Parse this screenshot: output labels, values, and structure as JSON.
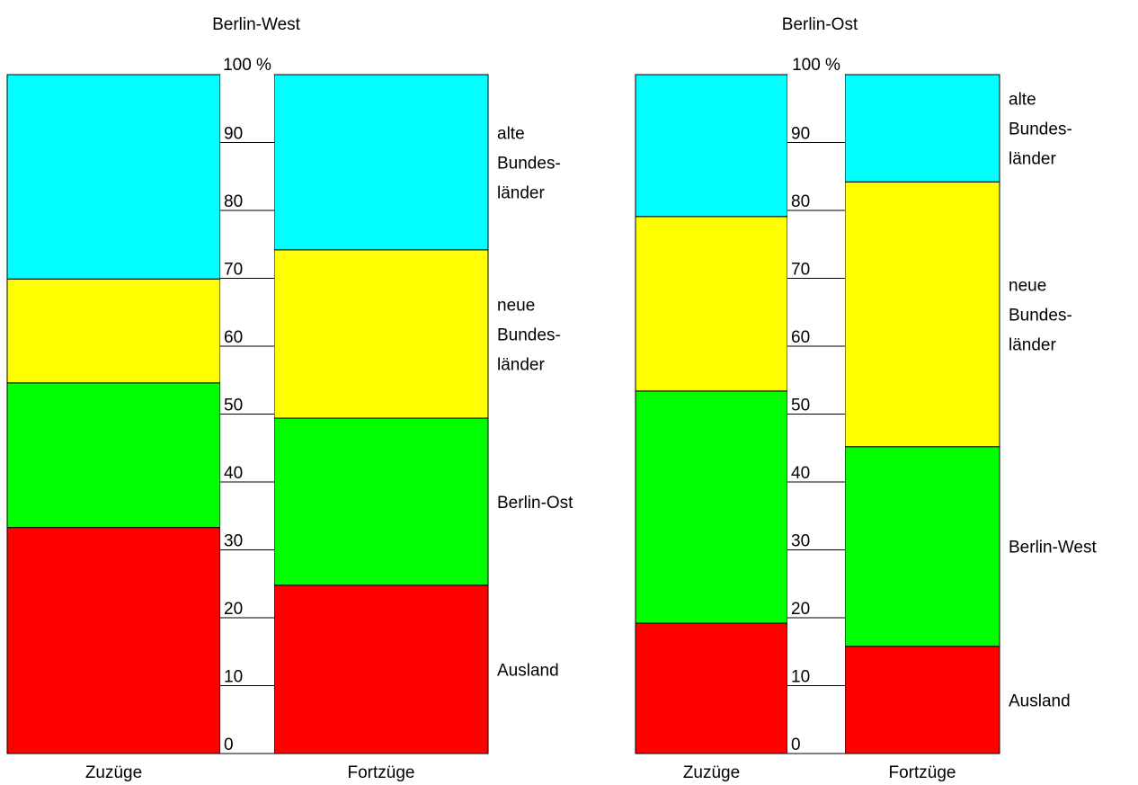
{
  "chart_data": [
    {
      "type": "bar",
      "stacked": true,
      "percent": true,
      "title": "Berlin-West",
      "categories": [
        "Zuzüge",
        "Fortzüge"
      ],
      "series": [
        {
          "name": "Ausland",
          "color": "#ff0000",
          "values": [
            33.3,
            24.8
          ]
        },
        {
          "name": "Berlin-Ost",
          "color": "#00ff00",
          "values": [
            21.3,
            24.6
          ]
        },
        {
          "name": "neue Bundes-länder",
          "color": "#ffff00",
          "values": [
            15.3,
            24.8
          ]
        },
        {
          "name": "alte Bundes-länder",
          "color": "#00ffff",
          "values": [
            30.1,
            25.8
          ]
        }
      ],
      "series_labels": [
        [
          "Ausland"
        ],
        [
          "Berlin-Ost"
        ],
        [
          "neue",
          "Bundes-",
          "länder"
        ],
        [
          "alte",
          "Bundes-",
          "länder"
        ]
      ],
      "ticks": [
        "0",
        "10",
        "20",
        "30",
        "40",
        "50",
        "60",
        "70",
        "80",
        "90",
        "100 %"
      ],
      "ylim": [
        0,
        100
      ]
    },
    {
      "type": "bar",
      "stacked": true,
      "percent": true,
      "title": "Berlin-Ost",
      "categories": [
        "Zuzüge",
        "Fortzüge"
      ],
      "series": [
        {
          "name": "Ausland",
          "color": "#ff0000",
          "values": [
            19.2,
            15.8
          ]
        },
        {
          "name": "Berlin-West",
          "color": "#00ff00",
          "values": [
            34.2,
            29.4
          ]
        },
        {
          "name": "neue Bundes-länder",
          "color": "#ffff00",
          "values": [
            25.7,
            39.0
          ]
        },
        {
          "name": "alte Bundes-länder",
          "color": "#00ffff",
          "values": [
            20.9,
            15.8
          ]
        }
      ],
      "series_labels": [
        [
          "Ausland"
        ],
        [
          "Berlin-West"
        ],
        [
          "neue",
          "Bundes-",
          "länder"
        ],
        [
          "alte",
          "Bundes-",
          "länder"
        ]
      ],
      "ticks": [
        "0",
        "10",
        "20",
        "30",
        "40",
        "50",
        "60",
        "70",
        "80",
        "90",
        "100 %"
      ],
      "ylim": [
        0,
        100
      ]
    }
  ]
}
